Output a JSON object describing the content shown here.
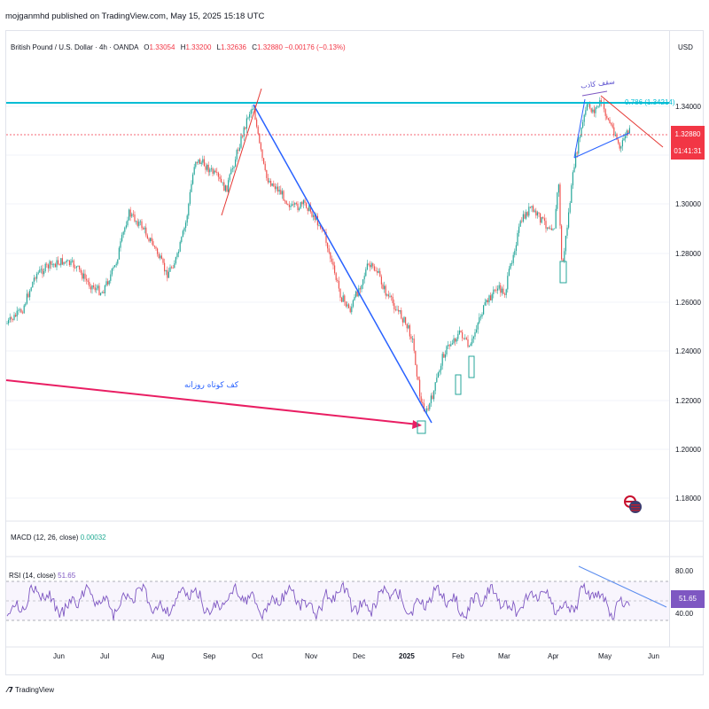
{
  "header": {
    "publisher_line": "mojganmhd published on TradingView.com, May 15, 2025 15:18 UTC"
  },
  "symbol": {
    "description": "British Pound / U.S. Dollar · 4h · OANDA",
    "open_label": "O",
    "open": "1.33054",
    "high_label": "H",
    "high": "1.33200",
    "low_label": "L",
    "low": "1.32636",
    "close_label": "C",
    "close": "1.32880",
    "change": "−0.00176 (−0.13%)"
  },
  "currency": "USD",
  "price_axis": {
    "labels": [
      "1.34000",
      "1.32880",
      "1.30000",
      "1.28000",
      "1.26000",
      "1.24000",
      "1.22000",
      "1.20000",
      "1.18000"
    ]
  },
  "price_tag": {
    "price": "1.32880",
    "countdown": "01:41:31",
    "color": "#f23645"
  },
  "fibonacci": {
    "level": "0.786",
    "price": "(1.34214)",
    "color": "#00bcd4"
  },
  "annotations": {
    "weekly_bottom": "کف کوتاه روزانه",
    "top_note": "سقف کاذب"
  },
  "macd": {
    "title": "MACD (12, 26, close)",
    "value": "0.00032"
  },
  "rsi": {
    "title": "RSI (14, close)",
    "value": "51.65",
    "levels": [
      "80.00",
      "40.00"
    ],
    "color": "#7e57c2"
  },
  "time_axis": {
    "labels": [
      "Jun",
      "Jul",
      "Aug",
      "Sep",
      "Oct",
      "Nov",
      "Dec",
      "2025",
      "Feb",
      "Mar",
      "Apr",
      "May",
      "Jun"
    ]
  },
  "footer": {
    "brand": "TradingView",
    "logo_icon": "tradingview-logo-icon"
  },
  "colors": {
    "up": "#26a69a",
    "down": "#ef5350",
    "trendline_blue": "#2962ff",
    "trendline_pink": "#e91e63",
    "horizontal_cyan": "#00bcd4"
  }
}
